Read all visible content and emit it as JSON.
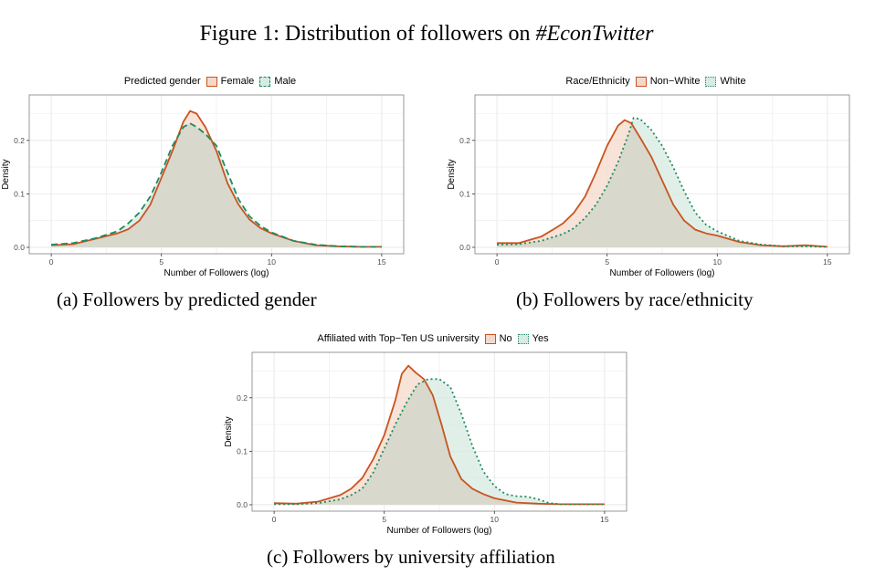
{
  "figure": {
    "title_prefix": "Figure 1: Distribution of followers on ",
    "title_hashtag": "#EconTwitter"
  },
  "colors": {
    "group1_line": "#c9541f",
    "group1_fill": "#f4d9cb",
    "group2_line": "#1f8a5f",
    "group2_fill": "#d6ebe2",
    "overlap_fill": "#d8d8cc",
    "grid": "#ebebeb",
    "panel_border": "#7f7f7f"
  },
  "chart_data": [
    {
      "type": "area",
      "caption": "(a) Followers by predicted gender",
      "legend_title": "Predicted gender",
      "xlabel": "Number of Followers (log)",
      "ylabel": "Density",
      "xlim": [
        -1,
        16
      ],
      "ylim": [
        -0.012,
        0.285
      ],
      "xticks": [
        "0",
        "5",
        "10",
        "15"
      ],
      "yticks": [
        "0.0",
        "0.1",
        "0.2"
      ],
      "grid": true,
      "legend_position": "top",
      "series": [
        {
          "name": "Female",
          "style": "solid",
          "x": [
            0,
            1,
            2,
            3,
            3.5,
            4,
            4.5,
            5,
            5.5,
            6,
            6.3,
            6.6,
            7,
            7.5,
            8,
            8.5,
            9,
            9.5,
            10,
            11,
            12,
            13,
            14,
            15
          ],
          "y": [
            0.004,
            0.006,
            0.016,
            0.026,
            0.034,
            0.05,
            0.08,
            0.13,
            0.18,
            0.235,
            0.255,
            0.25,
            0.225,
            0.18,
            0.12,
            0.08,
            0.052,
            0.036,
            0.026,
            0.012,
            0.004,
            0.002,
            0.001,
            0.001
          ]
        },
        {
          "name": "Male",
          "style": "dashed",
          "x": [
            0,
            1,
            2,
            3,
            3.5,
            4,
            4.5,
            5,
            5.5,
            6,
            6.3,
            6.6,
            7,
            7.5,
            8,
            8.5,
            9,
            9.5,
            10,
            11,
            12,
            13,
            14,
            15
          ],
          "y": [
            0.005,
            0.008,
            0.017,
            0.03,
            0.045,
            0.065,
            0.095,
            0.14,
            0.19,
            0.225,
            0.232,
            0.225,
            0.212,
            0.19,
            0.14,
            0.09,
            0.058,
            0.04,
            0.028,
            0.012,
            0.005,
            0.002,
            0.001,
            0.001
          ]
        }
      ]
    },
    {
      "type": "area",
      "caption": "(b) Followers by race/ethnicity",
      "legend_title": "Race/Ethnicity",
      "xlabel": "Number of Followers (log)",
      "ylabel": "Density",
      "xlim": [
        -1,
        16
      ],
      "ylim": [
        -0.012,
        0.285
      ],
      "xticks": [
        "0",
        "5",
        "10",
        "15"
      ],
      "yticks": [
        "0.0",
        "0.1",
        "0.2"
      ],
      "grid": true,
      "legend_position": "top",
      "series": [
        {
          "name": "Non−White",
          "style": "solid",
          "x": [
            0,
            1,
            2,
            2.5,
            3,
            3.5,
            4,
            4.5,
            5,
            5.5,
            5.8,
            6.1,
            6.5,
            7,
            7.5,
            8,
            8.5,
            9,
            9.5,
            10,
            11,
            12,
            13,
            14,
            15
          ],
          "y": [
            0.008,
            0.008,
            0.02,
            0.032,
            0.045,
            0.065,
            0.095,
            0.14,
            0.19,
            0.228,
            0.238,
            0.232,
            0.205,
            0.17,
            0.125,
            0.08,
            0.05,
            0.033,
            0.026,
            0.022,
            0.01,
            0.004,
            0.002,
            0.004,
            0.001
          ]
        },
        {
          "name": "White",
          "style": "dotted",
          "x": [
            0,
            1,
            2,
            3,
            3.5,
            4,
            4.5,
            5,
            5.5,
            6,
            6.2,
            6.5,
            7,
            7.5,
            8,
            8.5,
            9,
            9.5,
            10,
            11,
            12,
            13,
            14,
            15
          ],
          "y": [
            0.005,
            0.006,
            0.012,
            0.025,
            0.036,
            0.055,
            0.08,
            0.115,
            0.16,
            0.215,
            0.242,
            0.24,
            0.22,
            0.19,
            0.15,
            0.105,
            0.065,
            0.042,
            0.03,
            0.012,
            0.005,
            0.002,
            0.002,
            0.001
          ]
        }
      ]
    },
    {
      "type": "area",
      "caption": "(c) Followers by university affiliation",
      "legend_title": "Affiliated with Top−Ten US university",
      "xlabel": "Number of Followers (log)",
      "ylabel": "Density",
      "xlim": [
        -1,
        16
      ],
      "ylim": [
        -0.012,
        0.285
      ],
      "xticks": [
        "0",
        "5",
        "10",
        "15"
      ],
      "yticks": [
        "0.0",
        "0.1",
        "0.2"
      ],
      "grid": true,
      "legend_position": "top",
      "series": [
        {
          "name": "No",
          "style": "solid",
          "x": [
            0,
            1,
            2,
            3,
            3.5,
            4,
            4.5,
            5,
            5.5,
            5.8,
            6.1,
            6.4,
            6.8,
            7.2,
            7.6,
            8,
            8.5,
            9,
            9.5,
            10,
            11,
            12,
            13,
            14,
            15
          ],
          "y": [
            0.003,
            0.002,
            0.006,
            0.018,
            0.03,
            0.05,
            0.085,
            0.13,
            0.195,
            0.245,
            0.26,
            0.248,
            0.235,
            0.205,
            0.15,
            0.09,
            0.048,
            0.03,
            0.02,
            0.012,
            0.004,
            0.002,
            0.001,
            0.001,
            0.001
          ]
        },
        {
          "name": "Yes",
          "style": "dotted",
          "x": [
            0,
            1,
            2,
            3,
            3.5,
            4,
            4.5,
            5,
            5.5,
            6,
            6.5,
            7,
            7.5,
            8,
            8.5,
            9,
            9.5,
            10,
            10.5,
            11,
            11.5,
            12,
            12.5,
            13,
            15
          ],
          "y": [
            0.001,
            0.001,
            0.003,
            0.01,
            0.018,
            0.03,
            0.06,
            0.105,
            0.15,
            0.19,
            0.225,
            0.235,
            0.235,
            0.22,
            0.17,
            0.11,
            0.062,
            0.035,
            0.02,
            0.016,
            0.015,
            0.01,
            0.003,
            0.001,
            0.001
          ]
        }
      ]
    }
  ]
}
